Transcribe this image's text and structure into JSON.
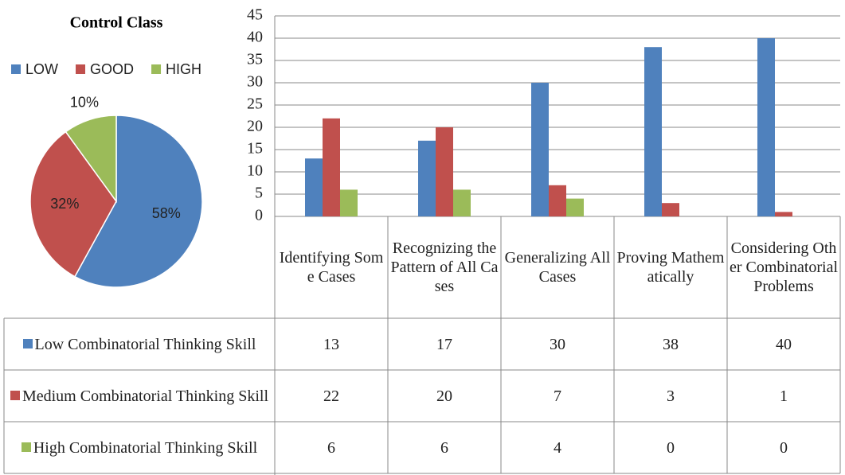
{
  "chart_data": [
    {
      "type": "pie",
      "title": "Control Class",
      "categories": [
        "LOW",
        "GOOD",
        "HIGH"
      ],
      "values": [
        58,
        32,
        10
      ],
      "value_labels": [
        "58%",
        "32%",
        "10%"
      ],
      "colors": [
        "#4f81bd",
        "#c0504d",
        "#9bbb59"
      ],
      "legend": "top"
    },
    {
      "type": "bar",
      "categories": [
        "Identifying Some Cases",
        "Recognizing the Pattern of All Cases",
        "Generalizing All Cases",
        "Proving Mathematically",
        "Considering Other Combinatorial Problems"
      ],
      "series": [
        {
          "name": "Low Combinatorial Thinking Skill",
          "color": "#4f81bd",
          "values": [
            13,
            17,
            30,
            38,
            40
          ]
        },
        {
          "name": "Medium Combinatorial Thinking Skill",
          "color": "#c0504d",
          "values": [
            22,
            20,
            7,
            3,
            1
          ]
        },
        {
          "name": "High Combinatorial Thinking Skill",
          "color": "#9bbb59",
          "values": [
            6,
            6,
            4,
            0,
            0
          ]
        }
      ],
      "ylim": [
        0,
        45
      ],
      "yticks": [
        0,
        5,
        10,
        15,
        20,
        25,
        30,
        35,
        40,
        45
      ],
      "grid": true,
      "data_table": true
    }
  ]
}
